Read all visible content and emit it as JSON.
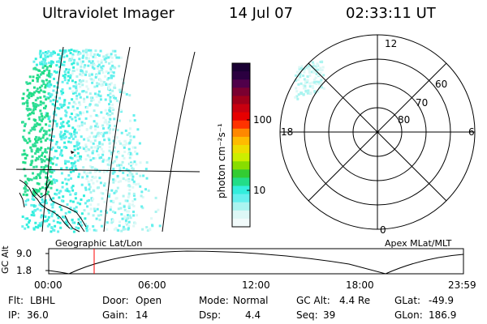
{
  "header": {
    "instrument": "Ultraviolet Imager",
    "date": "14 Jul 07",
    "time": "02:33:11 UT"
  },
  "colorbar": {
    "unit_label": "photon cm⁻²s⁻¹",
    "ticks": [
      "100",
      "10"
    ],
    "colors": [
      "#1a0033",
      "#2b0040",
      "#50004a",
      "#7a0030",
      "#a0001a",
      "#c8000f",
      "#e60000",
      "#ff3300",
      "#ff8800",
      "#ffbb00",
      "#eedd00",
      "#ccee00",
      "#88dd00",
      "#33cc33",
      "#22dd88",
      "#33eedd",
      "#66f0ee",
      "#aaf4f0",
      "#ddf8f6",
      "#f2fbfb"
    ]
  },
  "polar_plot": {
    "mlt_labels": [
      "12",
      "18",
      "6",
      "0"
    ],
    "lat_labels": [
      "60",
      "70",
      "80"
    ],
    "title": "Apex MLat/MLT"
  },
  "geo_plot": {
    "title": "Geographic Lat/Lon"
  },
  "timeline": {
    "ylabel": "GC Alt",
    "y_ticks": [
      "9.0",
      "1.8"
    ],
    "x_ticks": [
      "00:00",
      "06:00",
      "12:00",
      "18:00",
      "23:59"
    ],
    "marker_time": "02:33",
    "marker_color": "#ff0000"
  },
  "status": {
    "row1": [
      {
        "label": "Flt:",
        "value": "LBHL"
      },
      {
        "label": "Door:",
        "value": "Open"
      },
      {
        "label": "Mode:",
        "value": "Normal"
      },
      {
        "label": "GC Alt:",
        "value": "4.4 Re"
      },
      {
        "label": "GLat:",
        "value": "-49.9"
      }
    ],
    "row2": [
      {
        "label": "IP:",
        "value": "36.0"
      },
      {
        "label": "Gain:",
        "value": "14"
      },
      {
        "label": "Dsp:",
        "value": "4.4"
      },
      {
        "label": "Seq:",
        "value": "39"
      },
      {
        "label": "GLon:",
        "value": "186.9"
      }
    ]
  }
}
